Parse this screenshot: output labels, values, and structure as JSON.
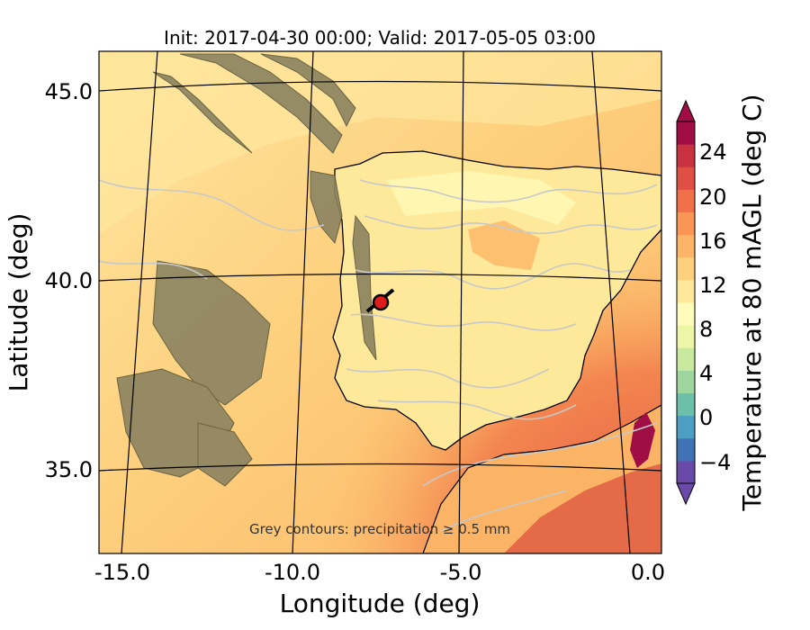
{
  "title": "Init: 2017-04-30 00:00; Valid: 2017-05-05 03:00",
  "annotation": "Grey contours: precipitation ≥ 0.5 mm",
  "axes": {
    "xlabel": "Longitude (deg)",
    "ylabel": "Latitude (deg)",
    "xticks": [
      "-15.0",
      "-10.0",
      "-5.0",
      "0.0"
    ],
    "yticks": [
      "45.0",
      "40.0",
      "35.0"
    ]
  },
  "colorbar": {
    "label": "Temperature at 80 mAGL (deg C)",
    "ticks": [
      "24",
      "20",
      "16",
      "12",
      "8",
      "4",
      "0",
      "−4"
    ],
    "colors": [
      "#6a4aa8",
      "#3f73b6",
      "#4d9ec3",
      "#6cbfa8",
      "#9ed6a0",
      "#c9e99e",
      "#edf6a7",
      "#fffcbb",
      "#fee89a",
      "#fdd07e",
      "#fcb567",
      "#f99555",
      "#f07049",
      "#e04f43",
      "#c8313f",
      "#a00d45"
    ]
  },
  "chart_data": {
    "type": "map",
    "field": "Temperature at 80 mAGL",
    "units": "deg C",
    "colorbar_range": [
      -6,
      27
    ],
    "lon_range": [
      -16,
      0
    ],
    "lat_range": [
      33,
      46
    ],
    "marker": {
      "lon": -7.7,
      "lat": 39.3,
      "label": ""
    }
  }
}
